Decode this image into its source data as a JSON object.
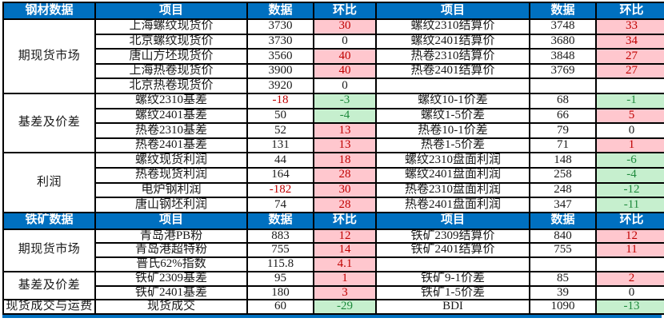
{
  "palette": {
    "header_bg": "#0070C0",
    "header_text": "#FFFFFF",
    "pink_bg": "#FFC7CE",
    "green_bg": "#C6EFCE",
    "red_text": "#C00000",
    "green_text": "#1F8A3D",
    "body_text": "#1A1A1A",
    "border": "#000000"
  },
  "columns": [
    "项目",
    "数据",
    "环比",
    "项目",
    "数据",
    "环比"
  ],
  "sections": [
    {
      "title": "钢材数据",
      "groups": [
        {
          "category": "期现货市场",
          "rows": [
            {
              "item1": "上海螺纹现货价",
              "data1": "3730",
              "data1_neg": false,
              "pct1": "30",
              "pct1_style": "pink",
              "item2": "螺纹2310结算价",
              "data2": "3748",
              "data2_neg": false,
              "pct2": "33",
              "pct2_style": "pink"
            },
            {
              "item1": "北京螺纹现货价",
              "data1": "3730",
              "data1_neg": false,
              "pct1": "0",
              "pct1_style": "plain",
              "item2": "螺纹2401结算价",
              "data2": "3680",
              "data2_neg": false,
              "pct2": "34",
              "pct2_style": "pink"
            },
            {
              "item1": "唐山方坯现货价",
              "data1": "3560",
              "data1_neg": false,
              "pct1": "40",
              "pct1_style": "pink",
              "item2": "热卷2310结算价",
              "data2": "3848",
              "data2_neg": false,
              "pct2": "27",
              "pct2_style": "pink"
            },
            {
              "item1": "上海热卷现货价",
              "data1": "3900",
              "data1_neg": false,
              "pct1": "40",
              "pct1_style": "pink",
              "item2": "热卷2401结算价",
              "data2": "3769",
              "data2_neg": false,
              "pct2": "27",
              "pct2_style": "pink"
            },
            {
              "item1": "北京热卷现货价",
              "data1": "3920",
              "data1_neg": false,
              "pct1": "0",
              "pct1_style": "plain",
              "item2": "",
              "data2": "",
              "data2_neg": false,
              "pct2": "",
              "pct2_style": "plain"
            }
          ]
        },
        {
          "category": "基差及价差",
          "rows": [
            {
              "item1": "螺纹2310基差",
              "data1": "-18",
              "data1_neg": true,
              "pct1": "-3",
              "pct1_style": "green",
              "item2": "螺纹10-1价差",
              "data2": "68",
              "data2_neg": false,
              "pct2": "-1",
              "pct2_style": "green"
            },
            {
              "item1": "螺纹2401基差",
              "data1": "50",
              "data1_neg": false,
              "pct1": "-4",
              "pct1_style": "green",
              "item2": "螺纹1-5价差",
              "data2": "66",
              "data2_neg": false,
              "pct2": "5",
              "pct2_style": "pink"
            },
            {
              "item1": "热卷2310基差",
              "data1": "52",
              "data1_neg": false,
              "pct1": "13",
              "pct1_style": "pink",
              "item2": "热卷10-1价差",
              "data2": "79",
              "data2_neg": false,
              "pct2": "0",
              "pct2_style": "plain"
            },
            {
              "item1": "热卷2401基差",
              "data1": "131",
              "data1_neg": false,
              "pct1": "13",
              "pct1_style": "pink",
              "item2": "热卷1-5价差",
              "data2": "71",
              "data2_neg": false,
              "pct2": "1",
              "pct2_style": "pink"
            }
          ]
        },
        {
          "category": "利润",
          "rows": [
            {
              "item1": "螺纹现货利润",
              "data1": "44",
              "data1_neg": false,
              "pct1": "18",
              "pct1_style": "pink",
              "item2": "螺纹2310盘面利润",
              "data2": "148",
              "data2_neg": false,
              "pct2": "-6",
              "pct2_style": "green"
            },
            {
              "item1": "热卷现货利润",
              "data1": "164",
              "data1_neg": false,
              "pct1": "28",
              "pct1_style": "pink",
              "item2": "螺纹2401盘面利润",
              "data2": "258",
              "data2_neg": false,
              "pct2": "-4",
              "pct2_style": "green"
            },
            {
              "item1": "电炉钢利润",
              "data1": "-182",
              "data1_neg": true,
              "pct1": "30",
              "pct1_style": "pink",
              "item2": "热卷2310盘面利润",
              "data2": "248",
              "data2_neg": false,
              "pct2": "-12",
              "pct2_style": "green"
            },
            {
              "item1": "唐山钢坯利润",
              "data1": "74",
              "data1_neg": false,
              "pct1": "28",
              "pct1_style": "pink",
              "item2": "热卷2401盘面利润",
              "data2": "347",
              "data2_neg": false,
              "pct2": "-11",
              "pct2_style": "green"
            }
          ]
        }
      ]
    },
    {
      "title": "铁矿数据",
      "groups": [
        {
          "category": "期现货市场",
          "rows": [
            {
              "item1": "青岛港PB粉",
              "data1": "883",
              "data1_neg": false,
              "pct1": "12",
              "pct1_style": "pink",
              "item2": "铁矿2309结算价",
              "data2": "840",
              "data2_neg": false,
              "pct2": "12",
              "pct2_style": "pink"
            },
            {
              "item1": "青岛港超特粉",
              "data1": "755",
              "data1_neg": false,
              "pct1": "14",
              "pct1_style": "pink",
              "item2": "铁矿2401结算价",
              "data2": "755",
              "data2_neg": false,
              "pct2": "11",
              "pct2_style": "pink"
            },
            {
              "item1": "普氏62%指数",
              "data1": "115.8",
              "data1_neg": false,
              "pct1": "4.1",
              "pct1_style": "pink",
              "item2": "",
              "data2": "",
              "data2_neg": false,
              "pct2": "",
              "pct2_style": "plain"
            }
          ]
        },
        {
          "category": "基差及价差",
          "rows": [
            {
              "item1": "铁矿2309基差",
              "data1": "95",
              "data1_neg": false,
              "pct1": "1",
              "pct1_style": "pink",
              "item2": "铁矿9-1价差",
              "data2": "85",
              "data2_neg": false,
              "pct2": "2",
              "pct2_style": "pink"
            },
            {
              "item1": "铁矿2401基差",
              "data1": "180",
              "data1_neg": false,
              "pct1": "3",
              "pct1_style": "pink",
              "item2": "铁矿1-5价差",
              "data2": "39",
              "data2_neg": false,
              "pct2": "0",
              "pct2_style": "plain"
            }
          ]
        },
        {
          "category": "现货成交与运费",
          "rows": [
            {
              "item1": "现货成交",
              "data1": "60",
              "data1_neg": false,
              "pct1": "-29",
              "pct1_style": "green",
              "item2": "BDI",
              "data2": "1090",
              "data2_neg": false,
              "pct2": "-13",
              "pct2_style": "green"
            }
          ]
        }
      ]
    }
  ]
}
